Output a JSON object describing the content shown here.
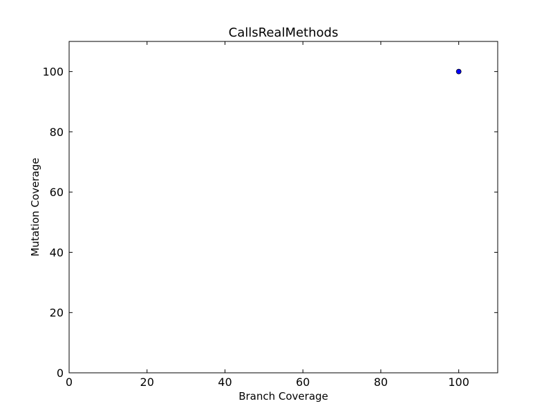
{
  "chart_data": {
    "type": "scatter",
    "title": "CallsRealMethods",
    "xlabel": "Branch Coverage",
    "ylabel": "Mutation Coverage",
    "xlim": [
      0,
      110
    ],
    "ylim": [
      0,
      110
    ],
    "xticks": [
      0,
      20,
      40,
      60,
      80,
      100
    ],
    "yticks": [
      0,
      20,
      40,
      60,
      80,
      100
    ],
    "grid": false,
    "series": [
      {
        "points": [
          {
            "x": 100,
            "y": 100
          }
        ],
        "color": "#0000ff",
        "edge_color": "#000000"
      }
    ]
  }
}
